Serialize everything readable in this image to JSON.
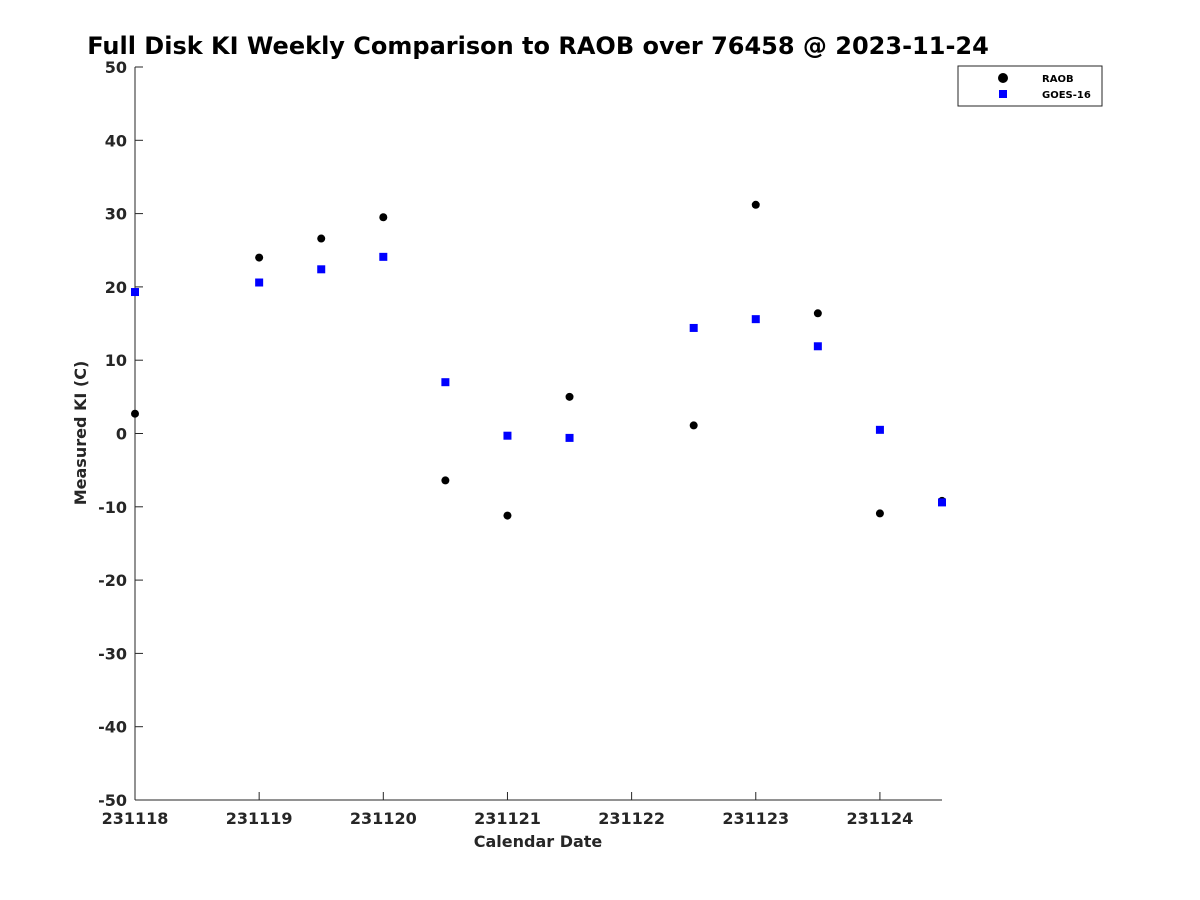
{
  "chart_data": {
    "type": "scatter",
    "title": "Full Disk KI Weekly Comparison to RAOB over 76458 @ 2023-11-24",
    "xlabel": "Calendar Date",
    "ylabel": "Measured KI (C)",
    "xlim": [
      0,
      6.5
    ],
    "ylim": [
      -50,
      50
    ],
    "xticks": [
      0,
      1,
      2,
      3,
      4,
      5,
      6
    ],
    "xtick_labels": [
      "231118",
      "231119",
      "231120",
      "231121",
      "231122",
      "231123",
      "231124"
    ],
    "yticks": [
      50,
      40,
      30,
      20,
      10,
      0,
      -10,
      -20,
      -30,
      -40,
      -50
    ],
    "ytick_labels": [
      "50",
      "40",
      "30",
      "20",
      "10",
      "0",
      "-10",
      "-20",
      "-30",
      "-40",
      "-50"
    ],
    "grid": false,
    "legend_position": "top-right",
    "series": [
      {
        "name": "RAOB",
        "marker": "circle",
        "color": "#000000",
        "x": [
          0,
          1,
          1.5,
          2,
          2.5,
          3,
          3.5,
          4.5,
          5,
          5.5,
          6,
          6.5
        ],
        "y": [
          2.7,
          24.0,
          26.6,
          29.5,
          -6.4,
          -11.2,
          5.0,
          1.1,
          31.2,
          16.4,
          -10.9,
          -9.2
        ]
      },
      {
        "name": "GOES-16",
        "marker": "square",
        "color": "#0000ff",
        "x": [
          0,
          1,
          1.5,
          2,
          2.5,
          3,
          3.5,
          4.5,
          5,
          5.5,
          6,
          6.5
        ],
        "y": [
          19.3,
          20.6,
          22.4,
          24.1,
          7.0,
          -0.3,
          -0.6,
          14.4,
          15.6,
          11.9,
          0.5,
          -9.4
        ]
      }
    ]
  }
}
